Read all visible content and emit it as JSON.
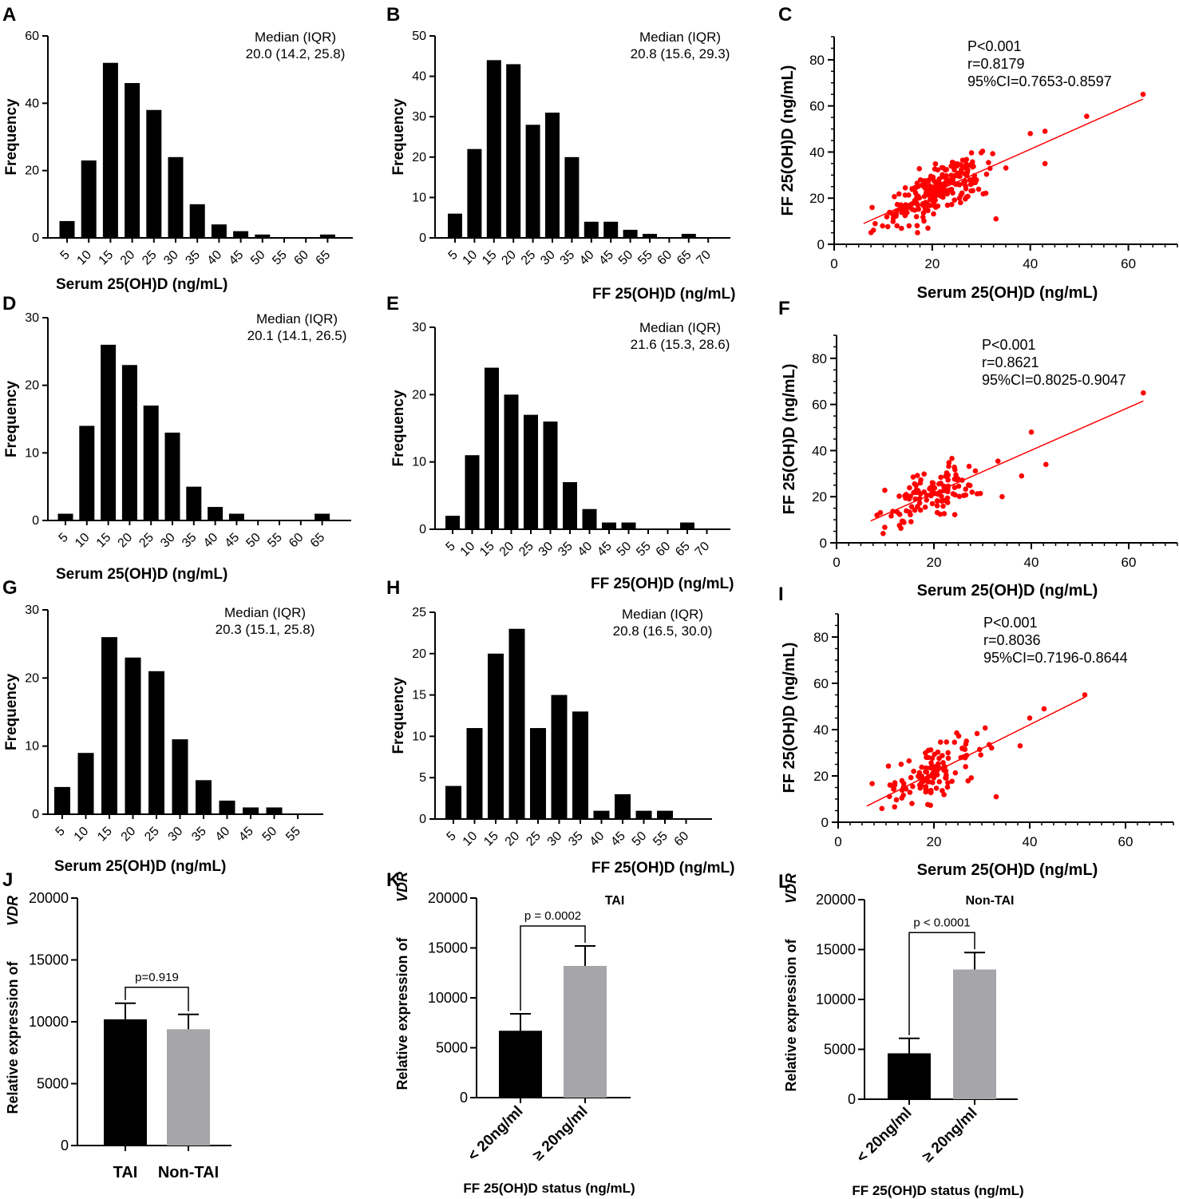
{
  "chart_data": [
    {
      "id": "A",
      "type": "bar",
      "categories": [
        "5",
        "10",
        "15",
        "20",
        "25",
        "30",
        "35",
        "40",
        "45",
        "50",
        "55",
        "60",
        "65"
      ],
      "values": [
        5,
        23,
        52,
        46,
        38,
        24,
        10,
        4,
        2,
        1,
        0,
        0,
        1
      ],
      "xlabel": "Serum 25(OH)D (ng/mL)",
      "ylabel": "Frequency",
      "ylim": [
        0,
        60
      ],
      "yticks": [
        "0",
        "20",
        "40",
        "60"
      ],
      "annotation": [
        "Median (IQR)",
        "20.0 (14.2, 25.8)"
      ],
      "color": "#000000"
    },
    {
      "id": "B",
      "type": "bar",
      "categories": [
        "5",
        "10",
        "15",
        "20",
        "25",
        "30",
        "35",
        "40",
        "45",
        "50",
        "55",
        "60",
        "65",
        "70"
      ],
      "values": [
        6,
        22,
        44,
        43,
        28,
        31,
        20,
        4,
        4,
        2,
        1,
        0,
        1,
        0
      ],
      "xlabel": "FF 25(OH)D (ng/mL)",
      "ylabel": "Frequency",
      "ylim": [
        0,
        50
      ],
      "yticks": [
        "0",
        "10",
        "20",
        "30",
        "40",
        "50"
      ],
      "annotation": [
        "Median (IQR)",
        "20.8 (15.6, 29.3)"
      ],
      "color": "#000000"
    },
    {
      "id": "C",
      "type": "scatter",
      "xlabel": "Serum 25(OH)D (ng/mL)",
      "ylabel": "FF 25(OH)D (ng/mL)",
      "xlim": [
        0,
        70
      ],
      "ylim": [
        0,
        90
      ],
      "xticks": [
        "0",
        "20",
        "40",
        "60"
      ],
      "yticks": [
        "0",
        "20",
        "40",
        "60",
        "80"
      ],
      "annotation": [
        "P<0.001",
        "r=0.8179",
        "95%CI=0.7653-0.8597"
      ],
      "fit": [
        [
          6,
          9
        ],
        [
          63,
          63
        ]
      ],
      "n_points": 240,
      "extreme_points": [
        [
          63,
          65
        ],
        [
          51.5,
          55.5
        ],
        [
          43,
          49
        ],
        [
          40,
          48
        ],
        [
          43,
          35
        ],
        [
          33,
          11
        ]
      ],
      "color": "#ff0000"
    },
    {
      "id": "D",
      "type": "bar",
      "categories": [
        "5",
        "10",
        "15",
        "20",
        "25",
        "30",
        "35",
        "40",
        "45",
        "50",
        "55",
        "60",
        "65"
      ],
      "values": [
        1,
        14,
        26,
        23,
        17,
        13,
        5,
        2,
        1,
        0,
        0,
        0,
        1
      ],
      "xlabel": "Serum 25(OH)D (ng/mL)",
      "ylabel": "Frequency",
      "ylim": [
        0,
        30
      ],
      "yticks": [
        "0",
        "10",
        "20",
        "30"
      ],
      "annotation": [
        "Median (IQR)",
        "20.1 (14.1, 26.5)"
      ],
      "color": "#000000"
    },
    {
      "id": "E",
      "type": "bar",
      "categories": [
        "5",
        "10",
        "15",
        "20",
        "25",
        "30",
        "35",
        "40",
        "45",
        "50",
        "55",
        "60",
        "65",
        "70"
      ],
      "values": [
        2,
        11,
        24,
        20,
        17,
        16,
        7,
        3,
        1,
        1,
        0,
        0,
        1,
        0
      ],
      "xlabel": "FF 25(OH)D (ng/mL)",
      "ylabel": "Frequency",
      "ylim": [
        0,
        30
      ],
      "yticks": [
        "0",
        "10",
        "20",
        "30"
      ],
      "annotation": [
        "Median (IQR)",
        "21.6 (15.3, 28.6)"
      ],
      "color": "#000000"
    },
    {
      "id": "F",
      "type": "scatter",
      "xlabel": "Serum 25(OH)D (ng/mL)",
      "ylabel": "FF 25(OH)D (ng/mL)",
      "xlim": [
        0,
        70
      ],
      "ylim": [
        0,
        90
      ],
      "xticks": [
        "0",
        "20",
        "40",
        "60"
      ],
      "yticks": [
        "0",
        "20",
        "40",
        "60",
        "80"
      ],
      "annotation": [
        "P<0.001",
        "r=0.8621",
        "95%CI=0.8025-0.9047"
      ],
      "fit": [
        [
          7,
          9.5
        ],
        [
          63,
          61.5
        ]
      ],
      "n_points": 120,
      "extreme_points": [
        [
          63,
          65
        ],
        [
          40,
          48
        ],
        [
          43,
          34
        ],
        [
          38,
          29
        ],
        [
          34,
          20
        ]
      ],
      "color": "#ff0000"
    },
    {
      "id": "G",
      "type": "bar",
      "categories": [
        "5",
        "10",
        "15",
        "20",
        "25",
        "30",
        "35",
        "40",
        "45",
        "50",
        "55"
      ],
      "values": [
        4,
        9,
        26,
        23,
        21,
        11,
        5,
        2,
        1,
        1,
        0
      ],
      "xlabel": "Serum 25(OH)D (ng/mL)",
      "ylabel": "Frequency",
      "ylim": [
        0,
        30
      ],
      "yticks": [
        "0",
        "10",
        "20",
        "30"
      ],
      "annotation": [
        "Median (IQR)",
        "20.3 (15.1, 25.8)"
      ],
      "color": "#000000"
    },
    {
      "id": "H",
      "type": "bar",
      "categories": [
        "5",
        "10",
        "15",
        "20",
        "25",
        "30",
        "35",
        "40",
        "45",
        "50",
        "55",
        "60"
      ],
      "values": [
        4,
        11,
        20,
        23,
        11,
        15,
        13,
        1,
        3,
        1,
        1,
        0
      ],
      "xlabel": "FF 25(OH)D (ng/mL)",
      "ylabel": "Frequency",
      "ylim": [
        0,
        25
      ],
      "yticks": [
        "0",
        "5",
        "10",
        "15",
        "20",
        "25"
      ],
      "annotation": [
        "Median (IQR)",
        "20.8 (16.5, 30.0)"
      ],
      "color": "#000000"
    },
    {
      "id": "I",
      "type": "scatter",
      "xlabel": "Serum 25(OH)D (ng/mL)",
      "ylabel": "FF 25(OH)D (ng/mL)",
      "xlim": [
        0,
        70
      ],
      "ylim": [
        0,
        90
      ],
      "xticks": [
        "0",
        "20",
        "40",
        "60"
      ],
      "yticks": [
        "0",
        "20",
        "40",
        "60",
        "80"
      ],
      "annotation": [
        "P<0.001",
        "r=0.8036",
        "95%CI=0.7196-0.8644"
      ],
      "fit": [
        [
          6,
          7
        ],
        [
          51.5,
          54
        ]
      ],
      "n_points": 120,
      "extreme_points": [
        [
          51.5,
          55
        ],
        [
          43,
          49
        ],
        [
          40,
          45
        ],
        [
          38,
          33
        ],
        [
          33,
          11
        ]
      ],
      "color": "#ff0000"
    },
    {
      "id": "J",
      "type": "bar",
      "categories": [
        "TAI",
        "Non-TAI"
      ],
      "values": [
        10200,
        9400
      ],
      "errors": [
        1300,
        1200
      ],
      "colors": [
        "#000000",
        "#a5a5aa"
      ],
      "ylabel_parts": [
        "Relative expression of ",
        "VDR"
      ],
      "ylim": [
        0,
        20000
      ],
      "yticks": [
        "0",
        "5000",
        "10000",
        "15000",
        "20000"
      ],
      "xlabel": "",
      "panel_title": "",
      "pvalue": "p=0.919"
    },
    {
      "id": "K",
      "type": "bar",
      "categories": [
        "< 20ng/ml",
        "≥ 20ng/ml"
      ],
      "values": [
        6700,
        13200
      ],
      "errors": [
        1700,
        2000
      ],
      "colors": [
        "#000000",
        "#a5a5aa"
      ],
      "ylabel_parts": [
        "Relative expression of ",
        "VDR"
      ],
      "ylim": [
        0,
        20000
      ],
      "yticks": [
        "0",
        "5000",
        "10000",
        "15000",
        "20000"
      ],
      "xlabel": "FF 25(OH)D status (ng/mL)",
      "panel_title": "TAI",
      "pvalue": "p = 0.0002"
    },
    {
      "id": "L",
      "type": "bar",
      "categories": [
        "< 20ng/ml",
        "≥ 20ng/ml"
      ],
      "values": [
        4600,
        13000
      ],
      "errors": [
        1500,
        1700
      ],
      "colors": [
        "#000000",
        "#a5a5aa"
      ],
      "ylabel_parts": [
        "Relative expression of ",
        "VDR"
      ],
      "ylim": [
        0,
        20000
      ],
      "yticks": [
        "0",
        "5000",
        "10000",
        "15000",
        "20000"
      ],
      "xlabel": "FF 25(OH)D status (ng/mL)",
      "panel_title": "Non-TAI",
      "pvalue": "p < 0.0001"
    }
  ]
}
